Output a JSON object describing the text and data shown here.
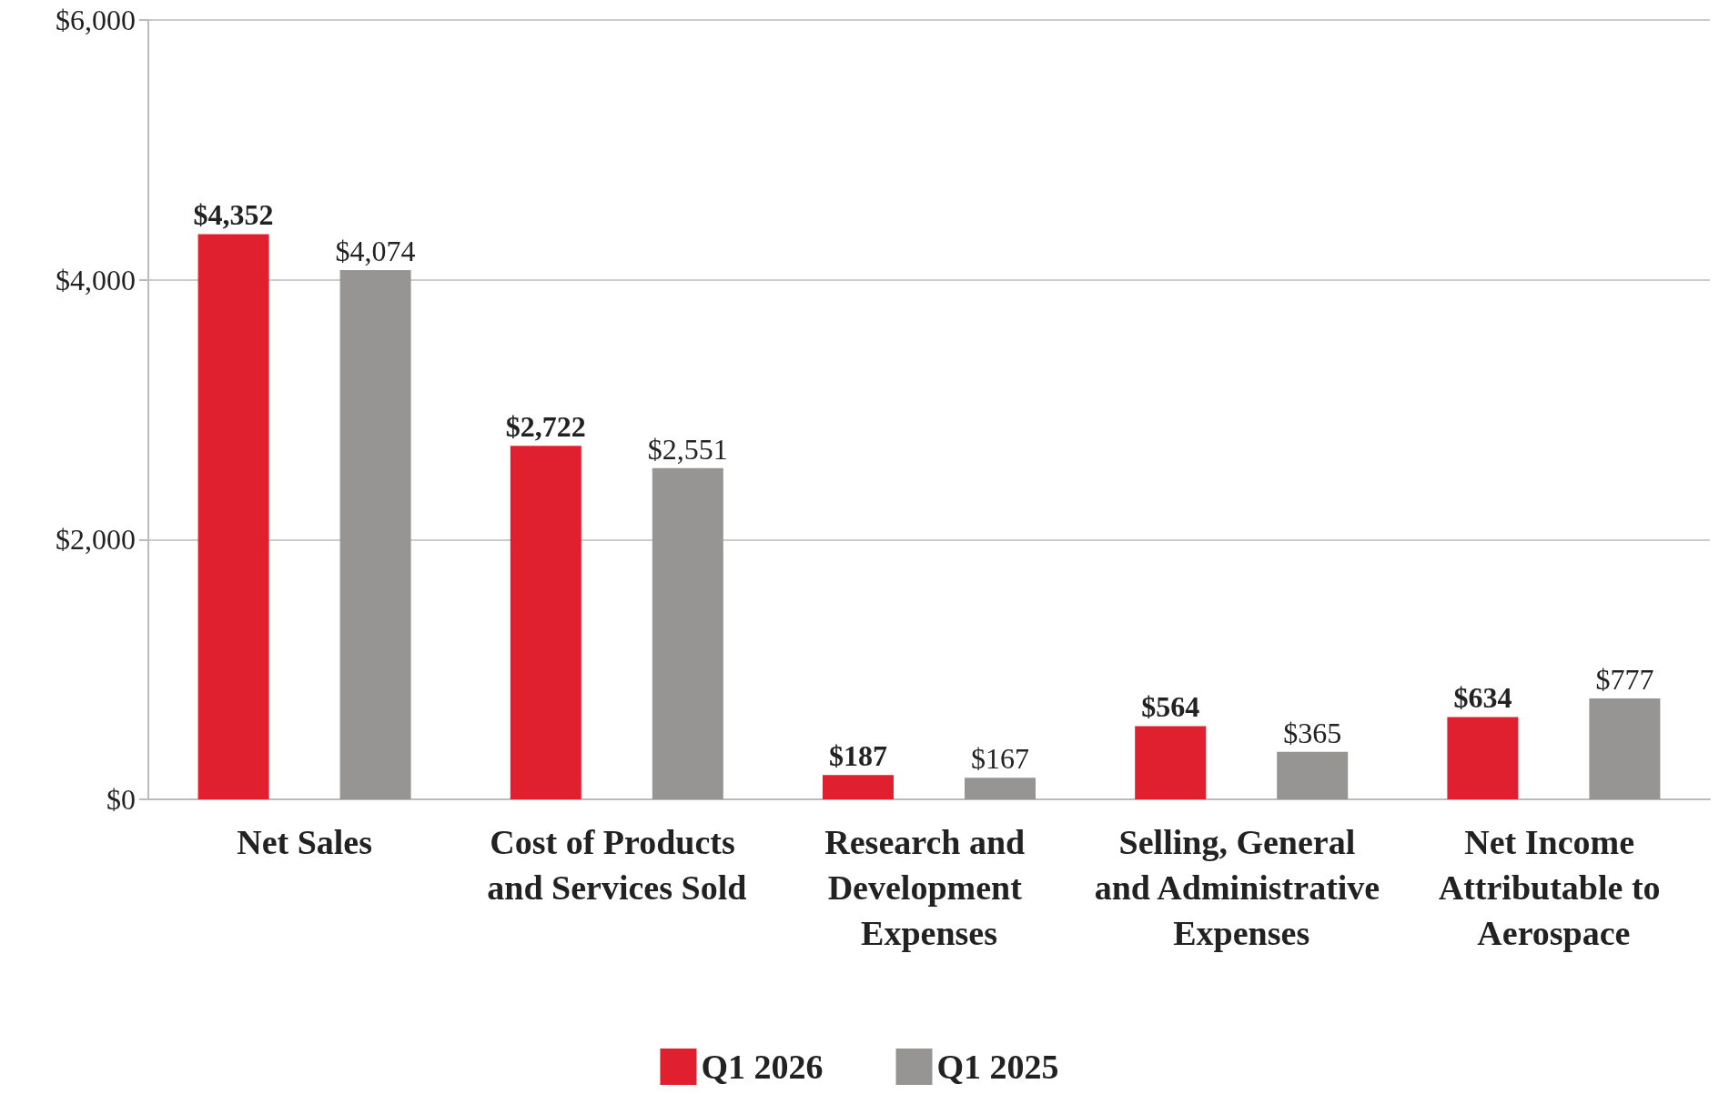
{
  "chart_data": {
    "type": "bar",
    "categories": [
      "Net Sales",
      "Cost of Products and Services Sold",
      "Research and Development Expenses",
      "Selling, General and Administrative Expenses",
      "Net Income Attributable to Aerospace"
    ],
    "series": [
      {
        "name": "Q1 2026",
        "color": "#e0202f",
        "values": [
          4352,
          2722,
          187,
          564,
          634
        ],
        "value_labels": [
          "$4,352",
          "$2,722",
          "$187",
          "$564",
          "$634"
        ]
      },
      {
        "name": "Q1 2025",
        "color": "#969594",
        "values": [
          4074,
          2551,
          167,
          365,
          777
        ],
        "value_labels": [
          "$4,074",
          "$2,551",
          "$167",
          "$365",
          "$777"
        ]
      }
    ],
    "ylim": [
      0,
      6000
    ],
    "yticks": [
      {
        "value": 0,
        "label": "$0"
      },
      {
        "value": 2000,
        "label": "$2,000"
      },
      {
        "value": 4000,
        "label": "$4,000"
      },
      {
        "value": 6000,
        "label": "$6,000"
      }
    ],
    "grid": "y",
    "legend": "bottom"
  }
}
